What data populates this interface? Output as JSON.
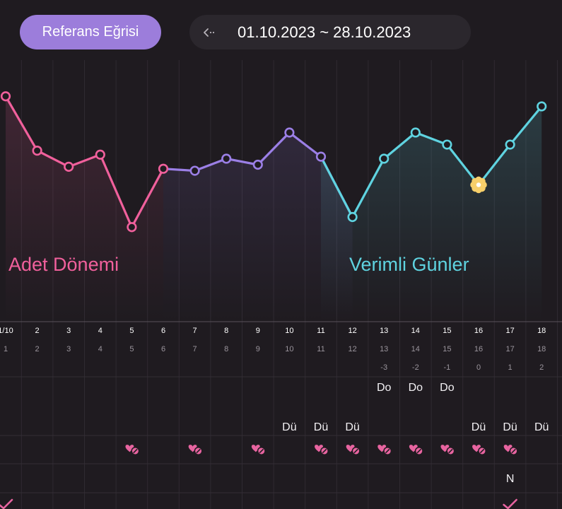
{
  "header": {
    "reference_button_label": "Referans Eğrisi",
    "back_icon": "chevron-left-icon",
    "date_range": "01.10.2023 ~ 28.10.2023"
  },
  "colors": {
    "background": "#1f1b20",
    "menstrual": "#f0609c",
    "follicular": "#9b7fe6",
    "fertile": "#5fd3e0",
    "ovulation_marker": "#f7cf6a",
    "accent_button": "#9c7ddb"
  },
  "chart_data": {
    "type": "line",
    "x": [
      "1/10",
      "2",
      "3",
      "4",
      "5",
      "6",
      "7",
      "8",
      "9",
      "10",
      "11",
      "12",
      "13",
      "14",
      "15",
      "16",
      "17",
      "18"
    ],
    "cycle_days": [
      "1",
      "2",
      "3",
      "4",
      "5",
      "6",
      "7",
      "8",
      "9",
      "10",
      "11",
      "12",
      "13",
      "14",
      "15",
      "16",
      "17",
      "18"
    ],
    "ovulation_offsets": [
      "",
      "",
      "",
      "",
      "",
      "",
      "",
      "",
      "",
      "",
      "",
      "",
      "-3",
      "-2",
      "-1",
      "0",
      "1",
      "2"
    ],
    "values": [
      36.82,
      36.55,
      36.47,
      36.53,
      36.17,
      36.46,
      36.45,
      36.51,
      36.48,
      36.64,
      36.52,
      36.22,
      36.51,
      36.64,
      36.58,
      36.38,
      36.58,
      36.77
    ],
    "segments": [
      {
        "name": "Adet Dönemi",
        "from": 0,
        "to": 5,
        "color": "#f0609c"
      },
      {
        "name": "",
        "from": 5,
        "to": 11,
        "color": "#9b7fe6"
      },
      {
        "name": "Verimli Günler",
        "from": 10,
        "to": 17,
        "color": "#5fd3e0"
      }
    ],
    "ovulation_index": 15,
    "ylim": [
      35.7,
      37.0
    ],
    "grid": true,
    "phase_labels": {
      "menstrual": "Adet Dönemi",
      "fertile": "Verimli Günler"
    }
  },
  "rows": {
    "do_row": [
      "",
      "",
      "",
      "",
      "",
      "",
      "",
      "",
      "",
      "",
      "",
      "",
      "Do",
      "Do",
      "Do",
      "",
      "",
      ""
    ],
    "du_row": [
      "",
      "",
      "",
      "",
      "",
      "",
      "",
      "",
      "",
      "Dü",
      "Dü",
      "Dü",
      "",
      "",
      "",
      "Dü",
      "Dü",
      "Dü"
    ],
    "heart_row": [
      false,
      false,
      false,
      false,
      true,
      false,
      true,
      false,
      true,
      false,
      true,
      true,
      true,
      true,
      true,
      true,
      true,
      false
    ],
    "heart_icon": "hearts-no-protection-icon",
    "n_row": [
      "",
      "",
      "",
      "",
      "",
      "",
      "",
      "",
      "",
      "",
      "",
      "",
      "",
      "",
      "",
      "",
      "N",
      ""
    ],
    "check_row": [
      true,
      false,
      false,
      false,
      false,
      false,
      false,
      false,
      false,
      false,
      false,
      false,
      false,
      false,
      false,
      false,
      true,
      false
    ],
    "check_icon": "check-icon"
  }
}
